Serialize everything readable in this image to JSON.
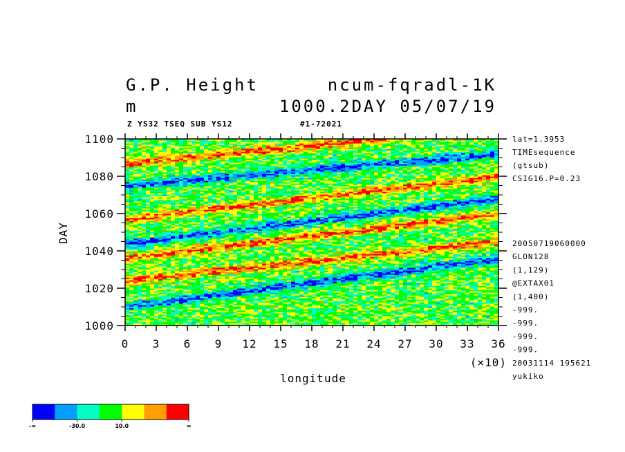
{
  "header": {
    "title_left": "G.P. Height",
    "title_right": "ncum-fqradl-1K",
    "units": "m",
    "level_date": "1000.2DAY 05/07/19",
    "subtitle_left": "Z YS32 TSEQ SUB YS12",
    "subtitle_right": "#1-72021"
  },
  "side_info": {
    "top": [
      "lat=1.3953",
      "TIMEsequence",
      "(gtsub)",
      "CSIG16.P=0.23"
    ],
    "bottom": [
      "20050719060000",
      "GLON128",
      "(1,129)",
      "@EXTAX01",
      "(1,400)",
      "-999.",
      "-999.",
      "-999.",
      "-999.",
      "20031114 195621",
      "yukiko"
    ]
  },
  "colorbar": {
    "colors": [
      "#0000ff",
      "#00a0ff",
      "#00ffc0",
      "#00ff00",
      "#ffff00",
      "#ffa000",
      "#ff0000"
    ],
    "labels": [
      "-∞",
      "-30.0",
      "10.0",
      "∞"
    ]
  },
  "chart_data": {
    "type": "heatmap",
    "xlabel": "longitude",
    "ylabel": "DAY",
    "x_multiplier": "(×10)",
    "xlim": [
      0,
      36
    ],
    "ylim": [
      1000,
      1100
    ],
    "x_ticks": [
      "0",
      "3",
      "6",
      "9",
      "12",
      "15",
      "18",
      "21",
      "24",
      "27",
      "30",
      "33",
      "36"
    ],
    "y_ticks": [
      "1000",
      "1020",
      "1040",
      "1060",
      "1080",
      "1100"
    ],
    "color_levels": [
      "-∞",
      "-30.0",
      "10.0",
      "∞"
    ],
    "features": [
      {
        "kind": "low_band",
        "from": [
          0,
          1044
        ],
        "to": [
          36,
          1068
        ]
      },
      {
        "kind": "low_band",
        "from": [
          0,
          1075
        ],
        "to": [
          36,
          1092
        ]
      },
      {
        "kind": "high_band",
        "from": [
          0,
          1057
        ],
        "to": [
          36,
          1080
        ]
      },
      {
        "kind": "high_band",
        "from": [
          0,
          1036
        ],
        "to": [
          36,
          1060
        ]
      },
      {
        "kind": "high_band",
        "from": [
          0,
          1087
        ],
        "to": [
          36,
          1106
        ]
      },
      {
        "kind": "low_band",
        "from": [
          0,
          1010
        ],
        "to": [
          36,
          1036
        ]
      },
      {
        "kind": "high_band",
        "from": [
          0,
          1024
        ],
        "to": [
          36,
          1045
        ]
      }
    ]
  }
}
